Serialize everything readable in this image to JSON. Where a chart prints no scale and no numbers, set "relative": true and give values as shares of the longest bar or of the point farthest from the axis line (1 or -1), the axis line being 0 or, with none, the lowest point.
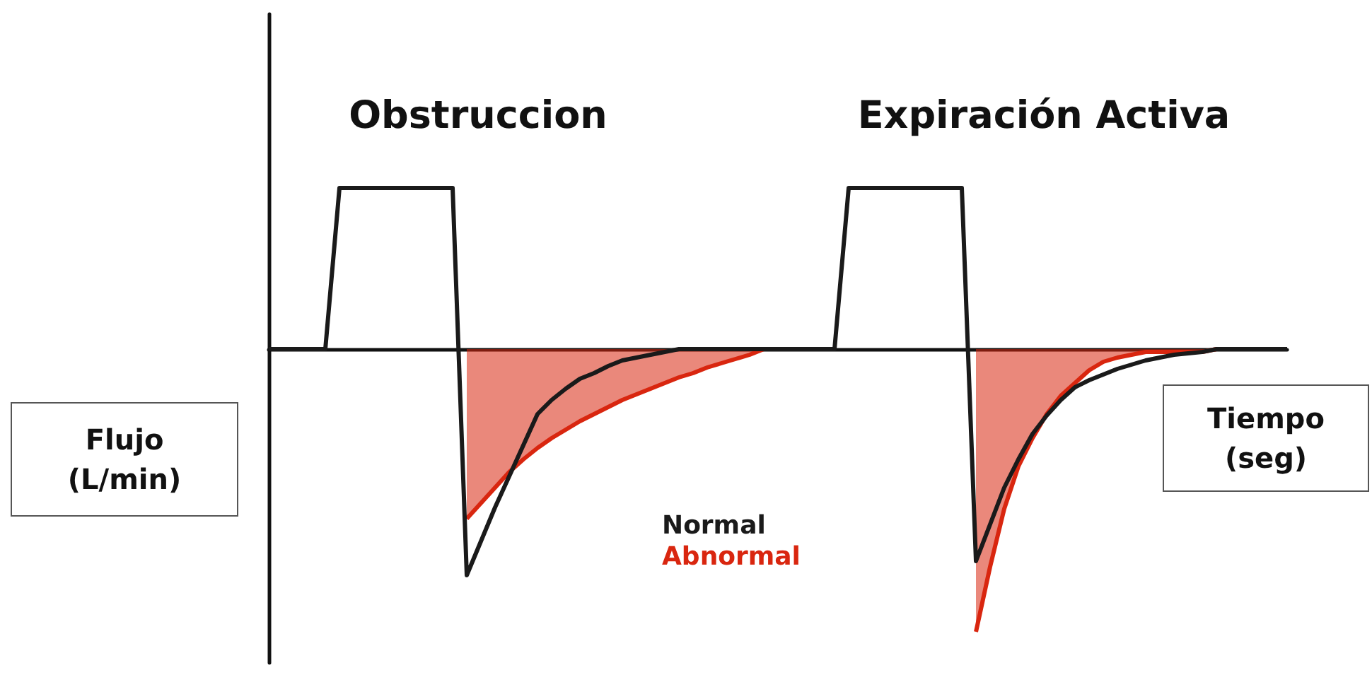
{
  "chart_data": {
    "type": "line",
    "relative": true,
    "xlabel": "Tiempo (seg)",
    "ylabel": "Flujo (L/min)",
    "annotations": [
      "Obstruccion",
      "Expiración Activa"
    ],
    "categories": [
      null,
      null,
      null,
      null,
      null,
      null,
      null,
      null,
      null,
      null,
      null,
      null,
      null,
      null,
      null,
      null,
      null,
      null,
      null,
      null,
      null,
      null,
      null,
      null,
      null,
      null,
      null,
      null,
      null,
      null,
      null,
      null,
      null,
      null,
      null,
      null,
      null,
      null,
      null,
      null,
      null,
      null,
      null,
      null,
      null,
      null,
      null,
      null,
      null,
      null,
      null,
      null,
      null,
      null,
      null,
      null,
      null,
      null,
      null,
      null,
      null,
      null,
      null,
      null,
      null,
      null,
      null,
      null,
      null,
      null,
      null,
      null,
      null
    ],
    "series": [
      {
        "name": "Normal",
        "type": "line",
        "color": "#1a1a1a",
        "values": [
          0,
          0,
          0,
          0,
          0,
          0.57,
          0.57,
          0.57,
          0.57,
          0.57,
          0.57,
          0.57,
          0.57,
          0.57,
          -0.8,
          -0.68,
          -0.56,
          -0.45,
          -0.34,
          -0.23,
          -0.18,
          -0.14,
          -0.105,
          -0.085,
          -0.06,
          -0.04,
          -0.03,
          -0.02,
          -0.01,
          0,
          0,
          0,
          0,
          0,
          0,
          0,
          0,
          0,
          0,
          0,
          0,
          0.57,
          0.57,
          0.57,
          0.57,
          0.57,
          0.57,
          0.57,
          0.57,
          0.57,
          -0.75,
          -0.62,
          -0.49,
          -0.39,
          -0.3,
          -0.235,
          -0.18,
          -0.135,
          -0.11,
          -0.09,
          -0.07,
          -0.055,
          -0.04,
          -0.03,
          -0.02,
          -0.015,
          -0.01,
          0,
          0,
          0,
          0,
          0,
          0
        ]
      },
      {
        "name": "Abnormal",
        "type": "area",
        "color": "#d9260f",
        "values": [
          null,
          null,
          null,
          null,
          null,
          null,
          null,
          null,
          null,
          null,
          null,
          null,
          null,
          null,
          -0.6,
          -0.545,
          -0.49,
          -0.435,
          -0.39,
          -0.35,
          -0.315,
          -0.285,
          -0.255,
          -0.23,
          -0.205,
          -0.18,
          -0.16,
          -0.14,
          -0.12,
          -0.1,
          -0.085,
          -0.065,
          -0.05,
          -0.035,
          -0.02,
          0,
          null,
          null,
          null,
          null,
          null,
          null,
          null,
          null,
          null,
          null,
          null,
          null,
          null,
          null,
          -1,
          -0.77,
          -0.565,
          -0.415,
          -0.315,
          -0.23,
          -0.165,
          -0.12,
          -0.075,
          -0.045,
          -0.03,
          -0.02,
          -0.01,
          -0.01,
          -0.01,
          -0.01,
          -0.01,
          0,
          null,
          null,
          null,
          null,
          null
        ]
      }
    ],
    "legend": "bottom",
    "grid": false,
    "marker": "none"
  }
}
